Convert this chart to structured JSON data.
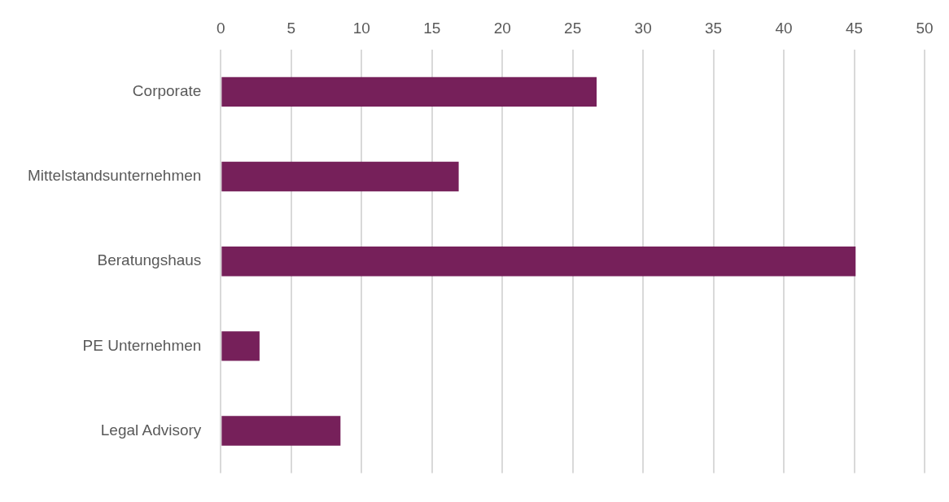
{
  "chart_data": {
    "type": "bar",
    "orientation": "horizontal",
    "categories": [
      "Corporate",
      "Mittelstandsunternehmen",
      "Beratungshaus",
      "PE Unternehmen",
      "Legal Advisory"
    ],
    "values": [
      26.7,
      16.9,
      45.1,
      2.75,
      8.5
    ],
    "color": "#76205a",
    "xlim": [
      0,
      50
    ],
    "xticks": [
      0,
      5,
      10,
      15,
      20,
      25,
      30,
      35,
      40,
      45,
      50
    ],
    "grid": "x",
    "legend": false
  }
}
